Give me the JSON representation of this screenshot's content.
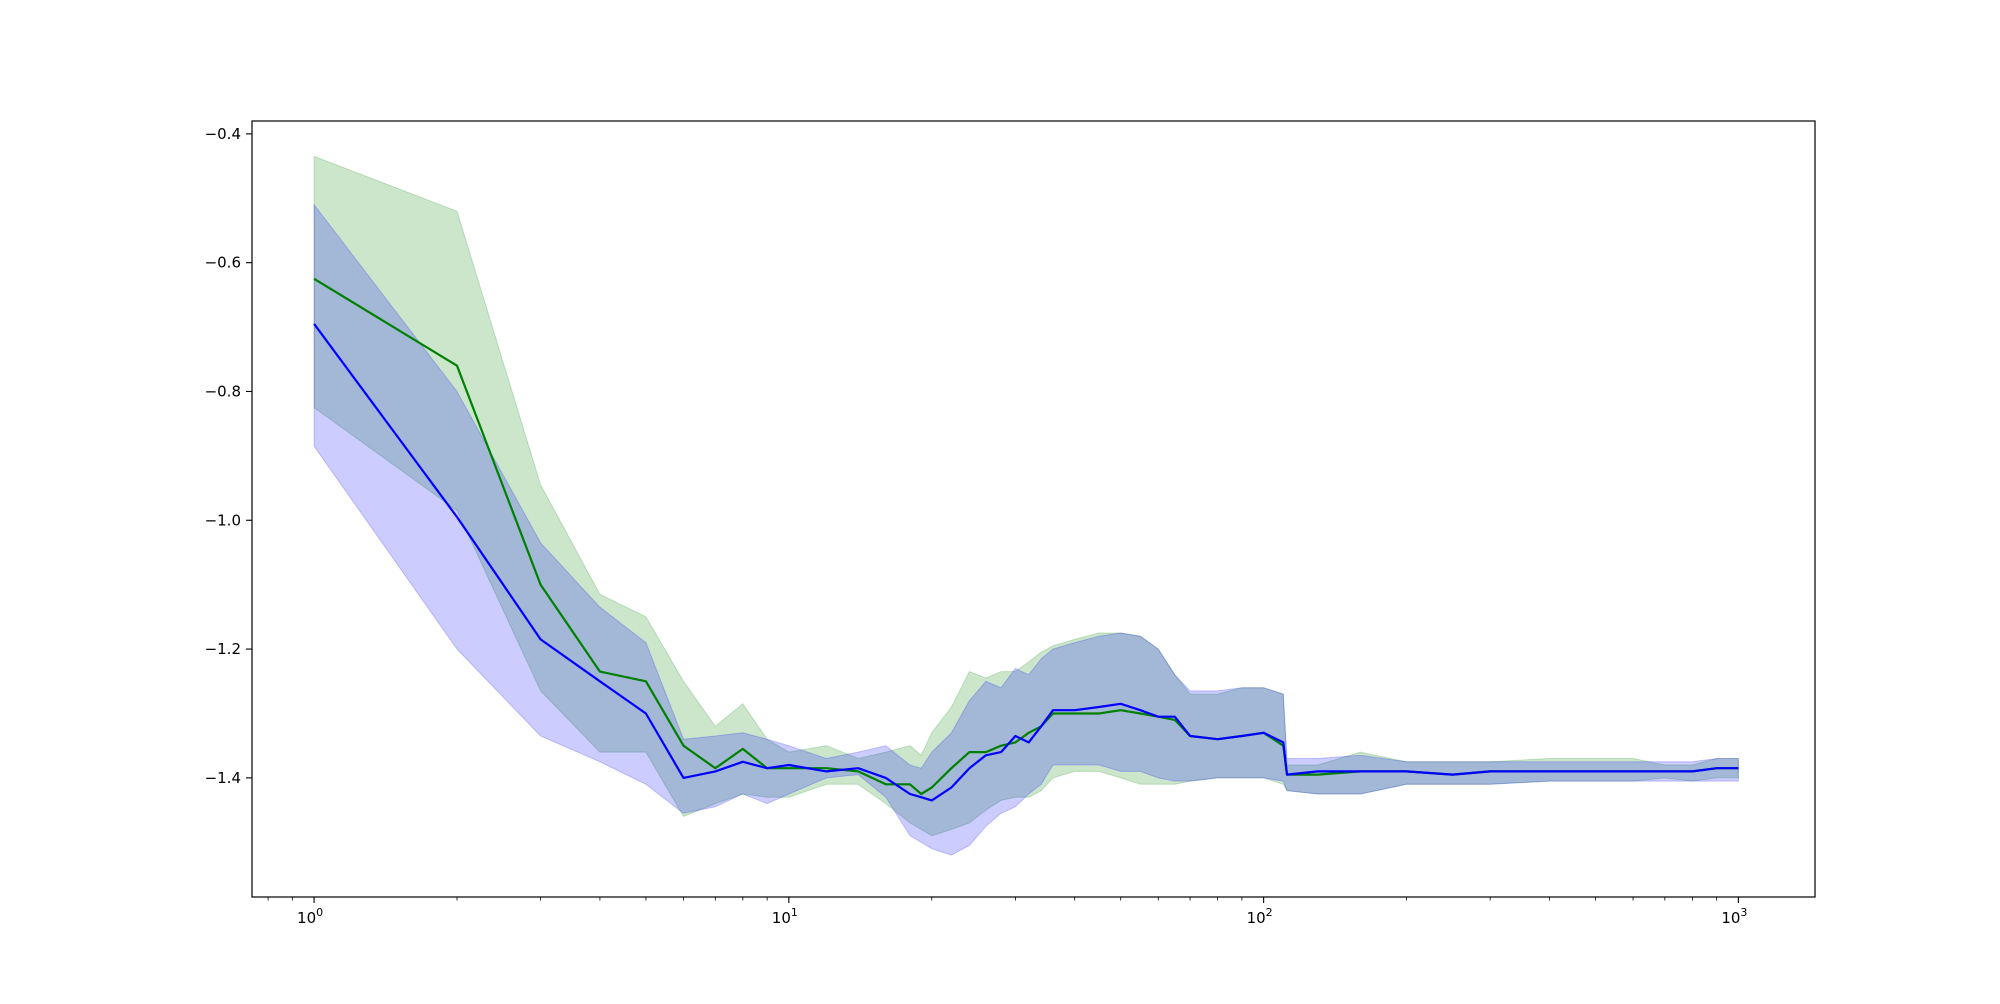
{
  "chart_data": {
    "type": "line",
    "title": "",
    "xlabel": "",
    "ylabel": "",
    "xscale": "log",
    "xlim": [
      0.74,
      1450
    ],
    "ylim": [
      -1.585,
      -0.38
    ],
    "grid": false,
    "legend": "none",
    "x_tick_labels": [
      {
        "label": "10",
        "exp": "0",
        "value": 1
      },
      {
        "label": "10",
        "exp": "1",
        "value": 10
      },
      {
        "label": "10",
        "exp": "2",
        "value": 100
      },
      {
        "label": "10",
        "exp": "3",
        "value": 1000
      }
    ],
    "y_tick_labels": [
      {
        "label": "−0.4",
        "value": -0.4
      },
      {
        "label": "−0.6",
        "value": -0.6
      },
      {
        "label": "−0.8",
        "value": -0.8
      },
      {
        "label": "−1.0",
        "value": -1.0
      },
      {
        "label": "−1.2",
        "value": -1.2
      },
      {
        "label": "−1.4",
        "value": -1.4
      }
    ],
    "series": [
      {
        "color": "#008000",
        "band_color": "#008000",
        "band_opacity": 0.2,
        "x": [
          1,
          2,
          3,
          4,
          5,
          6,
          7,
          8,
          9,
          10,
          12,
          14,
          16,
          18,
          19,
          20,
          22,
          24,
          26,
          28,
          30,
          32,
          34,
          36,
          40,
          45,
          50,
          55,
          60,
          65,
          70,
          80,
          90,
          100,
          110,
          112,
          130,
          160,
          200,
          250,
          300,
          400,
          500,
          600,
          700,
          800,
          900,
          1000
        ],
        "y": [
          -0.625,
          -0.76,
          -1.1,
          -1.235,
          -1.25,
          -1.35,
          -1.385,
          -1.355,
          -1.385,
          -1.385,
          -1.385,
          -1.39,
          -1.41,
          -1.41,
          -1.425,
          -1.415,
          -1.385,
          -1.36,
          -1.36,
          -1.35,
          -1.345,
          -1.33,
          -1.32,
          -1.3,
          -1.3,
          -1.3,
          -1.295,
          -1.3,
          -1.305,
          -1.31,
          -1.335,
          -1.34,
          -1.335,
          -1.33,
          -1.35,
          -1.395,
          -1.395,
          -1.39,
          -1.39,
          -1.395,
          -1.39,
          -1.39,
          -1.39,
          -1.39,
          -1.39,
          -1.39,
          -1.385,
          -1.385
        ],
        "upper": [
          -0.435,
          -0.52,
          -0.945,
          -1.115,
          -1.15,
          -1.25,
          -1.32,
          -1.285,
          -1.34,
          -1.36,
          -1.35,
          -1.37,
          -1.36,
          -1.35,
          -1.365,
          -1.33,
          -1.29,
          -1.235,
          -1.245,
          -1.235,
          -1.235,
          -1.22,
          -1.205,
          -1.195,
          -1.185,
          -1.175,
          -1.175,
          -1.18,
          -1.2,
          -1.24,
          -1.27,
          -1.27,
          -1.26,
          -1.26,
          -1.27,
          -1.38,
          -1.38,
          -1.36,
          -1.375,
          -1.375,
          -1.375,
          -1.37,
          -1.37,
          -1.37,
          -1.38,
          -1.38,
          -1.37,
          -1.37
        ],
        "lower": [
          -0.825,
          -0.985,
          -1.265,
          -1.36,
          -1.36,
          -1.46,
          -1.44,
          -1.425,
          -1.43,
          -1.43,
          -1.41,
          -1.41,
          -1.44,
          -1.47,
          -1.48,
          -1.49,
          -1.48,
          -1.47,
          -1.45,
          -1.435,
          -1.43,
          -1.43,
          -1.42,
          -1.4,
          -1.39,
          -1.39,
          -1.4,
          -1.41,
          -1.41,
          -1.41,
          -1.405,
          -1.4,
          -1.4,
          -1.4,
          -1.41,
          -1.42,
          -1.425,
          -1.425,
          -1.41,
          -1.41,
          -1.41,
          -1.405,
          -1.405,
          -1.405,
          -1.4,
          -1.405,
          -1.4,
          -1.4
        ]
      },
      {
        "color": "#0000ff",
        "band_color": "#0000ff",
        "band_opacity": 0.2,
        "x": [
          1,
          2,
          3,
          4,
          5,
          6,
          7,
          8,
          9,
          10,
          12,
          14,
          16,
          18,
          19,
          20,
          22,
          24,
          26,
          28,
          30,
          32,
          34,
          36,
          40,
          45,
          50,
          55,
          60,
          65,
          70,
          80,
          90,
          100,
          110,
          112,
          130,
          160,
          200,
          250,
          300,
          400,
          500,
          600,
          700,
          800,
          900,
          1000
        ],
        "y": [
          -0.695,
          -0.995,
          -1.185,
          -1.25,
          -1.3,
          -1.4,
          -1.39,
          -1.375,
          -1.385,
          -1.38,
          -1.39,
          -1.385,
          -1.4,
          -1.425,
          -1.43,
          -1.435,
          -1.415,
          -1.385,
          -1.365,
          -1.36,
          -1.335,
          -1.345,
          -1.32,
          -1.295,
          -1.295,
          -1.29,
          -1.285,
          -1.295,
          -1.305,
          -1.305,
          -1.335,
          -1.34,
          -1.335,
          -1.33,
          -1.345,
          -1.395,
          -1.39,
          -1.39,
          -1.39,
          -1.395,
          -1.39,
          -1.39,
          -1.39,
          -1.39,
          -1.39,
          -1.39,
          -1.385,
          -1.385
        ],
        "upper": [
          -0.51,
          -0.8,
          -1.035,
          -1.135,
          -1.19,
          -1.34,
          -1.335,
          -1.33,
          -1.34,
          -1.35,
          -1.37,
          -1.36,
          -1.35,
          -1.38,
          -1.385,
          -1.36,
          -1.33,
          -1.28,
          -1.25,
          -1.26,
          -1.23,
          -1.24,
          -1.215,
          -1.2,
          -1.19,
          -1.18,
          -1.175,
          -1.18,
          -1.2,
          -1.24,
          -1.265,
          -1.265,
          -1.26,
          -1.26,
          -1.27,
          -1.37,
          -1.37,
          -1.365,
          -1.375,
          -1.375,
          -1.375,
          -1.375,
          -1.375,
          -1.375,
          -1.375,
          -1.375,
          -1.37,
          -1.37
        ],
        "lower": [
          -0.885,
          -1.2,
          -1.335,
          -1.375,
          -1.41,
          -1.455,
          -1.445,
          -1.425,
          -1.44,
          -1.425,
          -1.4,
          -1.395,
          -1.43,
          -1.49,
          -1.5,
          -1.51,
          -1.52,
          -1.505,
          -1.475,
          -1.455,
          -1.445,
          -1.425,
          -1.41,
          -1.38,
          -1.38,
          -1.38,
          -1.39,
          -1.39,
          -1.4,
          -1.405,
          -1.405,
          -1.4,
          -1.4,
          -1.4,
          -1.405,
          -1.42,
          -1.425,
          -1.425,
          -1.41,
          -1.41,
          -1.41,
          -1.405,
          -1.405,
          -1.405,
          -1.405,
          -1.405,
          -1.405,
          -1.405
        ]
      }
    ]
  }
}
